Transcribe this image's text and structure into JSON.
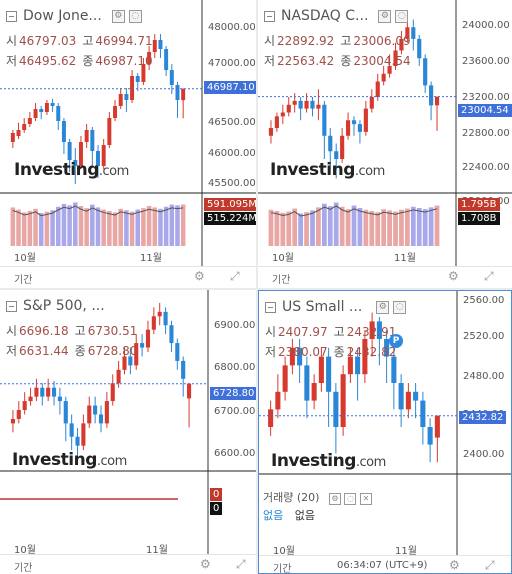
{
  "footer_label": "기간",
  "panels": [
    {
      "id": "dow",
      "title": "Dow Jone...",
      "ohlc": {
        "open_k": "시",
        "open": "46797.03",
        "high_k": "고",
        "high": "46994.71",
        "low_k": "저",
        "low": "46495.62",
        "close_k": "종",
        "close": "46987.10"
      },
      "logo": "Investing",
      "logo_suffix": ".com",
      "y_ticks": [
        "48000.00",
        "47000.00",
        "46500.00",
        "46000.00",
        "45500.00"
      ],
      "price_tag": "46987.10",
      "vol_tags": [
        "591.095M",
        "515.224M"
      ],
      "x_labels": [
        "10월",
        "11월"
      ],
      "colors": {
        "up": "#d63a2f",
        "down": "#2a86d6",
        "tag": "#3f6fd8",
        "vol_up": "#e8a7a4",
        "vol_down": "#a8a8ea"
      },
      "chart_data": {
        "type": "candlestick",
        "ylim": [
          45300,
          48400
        ],
        "x_start": "10월",
        "x_mid": "11월",
        "last": 46987.1,
        "candles": [
          [
            46100,
            46250,
            46000,
            46300
          ],
          [
            46200,
            46300,
            46150,
            46420
          ],
          [
            46300,
            46400,
            46250,
            46500
          ],
          [
            46400,
            46500,
            46350,
            46600
          ],
          [
            46500,
            46650,
            46450,
            46750
          ],
          [
            46650,
            46600,
            46480,
            46700
          ],
          [
            46600,
            46750,
            46550,
            46800
          ],
          [
            46750,
            46700,
            46600,
            46820
          ],
          [
            46700,
            46450,
            46300,
            46750
          ],
          [
            46450,
            46100,
            45900,
            46500
          ],
          [
            46100,
            45800,
            45600,
            46150
          ],
          [
            45800,
            45700,
            45400,
            46000
          ],
          [
            45700,
            46100,
            45650,
            46200
          ],
          [
            46100,
            46300,
            46000,
            46400
          ],
          [
            46300,
            45950,
            45700,
            46350
          ],
          [
            45950,
            45700,
            45500,
            46050
          ],
          [
            45700,
            46050,
            45650,
            46150
          ],
          [
            46050,
            46500,
            46000,
            46600
          ],
          [
            46500,
            46700,
            46450,
            46800
          ],
          [
            46700,
            46900,
            46650,
            47000
          ],
          [
            46900,
            46800,
            46600,
            47000
          ],
          [
            46800,
            47200,
            46750,
            47300
          ],
          [
            47200,
            47100,
            46950,
            47250
          ],
          [
            47100,
            47400,
            47050,
            47500
          ],
          [
            47400,
            47600,
            47300,
            47700
          ],
          [
            47600,
            47800,
            47500,
            47900
          ],
          [
            47800,
            47650,
            47500,
            47900
          ],
          [
            47650,
            47300,
            47200,
            47700
          ],
          [
            47300,
            47050,
            46900,
            47400
          ],
          [
            47050,
            46800,
            46500,
            47100
          ],
          [
            46797,
            46987,
            46495,
            46995
          ]
        ],
        "volume": [
          0.55,
          0.52,
          0.48,
          0.5,
          0.53,
          0.47,
          0.49,
          0.51,
          0.56,
          0.6,
          0.58,
          0.62,
          0.57,
          0.54,
          0.59,
          0.55,
          0.52,
          0.5,
          0.48,
          0.53,
          0.51,
          0.49,
          0.52,
          0.54,
          0.57,
          0.55,
          0.53,
          0.56,
          0.59,
          0.58,
          0.591
        ]
      }
    },
    {
      "id": "nasdaq",
      "title": "NASDAQ C...",
      "ohlc": {
        "open_k": "시",
        "open": "22892.92",
        "high_k": "고",
        "high": "23006.09",
        "low_k": "저",
        "low": "22563.42",
        "close_k": "종",
        "close": "23004.54"
      },
      "logo": "Investing",
      "logo_suffix": ".com",
      "y_ticks": [
        "24000.00",
        "23600.00",
        "23200.00",
        "22800.00",
        "22400.00",
        "22000.00"
      ],
      "price_tag": "23004.54",
      "vol_tags": [
        "1.795B",
        "1.708B"
      ],
      "x_labels": [
        "10월",
        "11월"
      ],
      "colors": {
        "up": "#d63a2f",
        "down": "#2a86d6",
        "tag": "#3f6fd8",
        "vol_up": "#e8a7a4",
        "vol_down": "#a8a8ea"
      },
      "chart_data": {
        "type": "candlestick",
        "ylim": [
          21800,
          24200
        ],
        "last": 23004.54,
        "candles": [
          [
            22500,
            22600,
            22400,
            22700
          ],
          [
            22600,
            22750,
            22550,
            22800
          ],
          [
            22750,
            22800,
            22650,
            22900
          ],
          [
            22800,
            22900,
            22750,
            23000
          ],
          [
            22900,
            22950,
            22800,
            23050
          ],
          [
            22950,
            22850,
            22700,
            23000
          ],
          [
            22850,
            22950,
            22800,
            23050
          ],
          [
            22950,
            22850,
            22750,
            23000
          ],
          [
            22850,
            22900,
            22700,
            23100
          ],
          [
            22900,
            22500,
            22200,
            22950
          ],
          [
            22500,
            22300,
            22100,
            22600
          ],
          [
            22300,
            22200,
            21950,
            22400
          ],
          [
            22200,
            22500,
            22150,
            22600
          ],
          [
            22500,
            22700,
            22450,
            22800
          ],
          [
            22700,
            22650,
            22500,
            22750
          ],
          [
            22650,
            22550,
            22400,
            22700
          ],
          [
            22550,
            22850,
            22500,
            22950
          ],
          [
            22850,
            23000,
            22800,
            23100
          ],
          [
            23000,
            23200,
            22950,
            23300
          ],
          [
            23200,
            23300,
            23150,
            23400
          ],
          [
            23300,
            23400,
            23250,
            23550
          ],
          [
            23400,
            23600,
            23350,
            23700
          ],
          [
            23600,
            23750,
            23550,
            23850
          ],
          [
            23750,
            23900,
            23700,
            24000
          ],
          [
            23900,
            23750,
            23600,
            24000
          ],
          [
            23750,
            23500,
            23400,
            23800
          ],
          [
            23500,
            23150,
            23050,
            23550
          ],
          [
            23150,
            22892,
            22700,
            23200
          ],
          [
            22892,
            23004,
            22563,
            23006
          ]
        ],
        "volume": [
          0.6,
          0.58,
          0.55,
          0.57,
          0.62,
          0.54,
          0.56,
          0.59,
          0.64,
          0.7,
          0.66,
          0.72,
          0.65,
          0.61,
          0.67,
          0.63,
          0.6,
          0.58,
          0.56,
          0.61,
          0.59,
          0.57,
          0.6,
          0.62,
          0.65,
          0.63,
          0.61,
          0.64,
          0.67
        ]
      }
    },
    {
      "id": "sp500",
      "title": "S&P 500, ...",
      "ohlc": {
        "open_k": "시",
        "open": "6696.18",
        "high_k": "고",
        "high": "6730.51",
        "low_k": "저",
        "low": "6631.44",
        "close_k": "종",
        "close": "6728.80"
      },
      "logo": "Investing",
      "logo_suffix": ".com",
      "y_ticks": [
        "6900.00",
        "6800.00",
        "6700.00",
        "6600.00"
      ],
      "price_tag": "6728.80",
      "vol_tags": [
        "0",
        "0"
      ],
      "x_labels": [
        "10월",
        "11월"
      ],
      "colors": {
        "up": "#d63a2f",
        "down": "#2a86d6",
        "tag": "#3f6fd8",
        "vol_up": "#e8a7a4",
        "vol_down": "#a8a8ea"
      },
      "chart_data": {
        "type": "candlestick",
        "ylim": [
          6540,
          6930
        ],
        "last": 6728.8,
        "candles": [
          [
            6640,
            6650,
            6620,
            6670
          ],
          [
            6650,
            6670,
            6640,
            6690
          ],
          [
            6670,
            6690,
            6660,
            6710
          ],
          [
            6690,
            6700,
            6680,
            6720
          ],
          [
            6700,
            6720,
            6690,
            6740
          ],
          [
            6720,
            6700,
            6680,
            6730
          ],
          [
            6700,
            6720,
            6690,
            6740
          ],
          [
            6720,
            6700,
            6680,
            6735
          ],
          [
            6700,
            6690,
            6660,
            6720
          ],
          [
            6690,
            6640,
            6600,
            6700
          ],
          [
            6640,
            6610,
            6580,
            6660
          ],
          [
            6610,
            6590,
            6560,
            6630
          ],
          [
            6590,
            6640,
            6580,
            6660
          ],
          [
            6640,
            6680,
            6630,
            6700
          ],
          [
            6680,
            6660,
            6640,
            6700
          ],
          [
            6660,
            6640,
            6620,
            6680
          ],
          [
            6640,
            6690,
            6630,
            6710
          ],
          [
            6690,
            6730,
            6680,
            6750
          ],
          [
            6730,
            6760,
            6720,
            6780
          ],
          [
            6760,
            6790,
            6750,
            6810
          ],
          [
            6790,
            6770,
            6750,
            6810
          ],
          [
            6770,
            6820,
            6760,
            6840
          ],
          [
            6820,
            6810,
            6790,
            6840
          ],
          [
            6810,
            6850,
            6800,
            6870
          ],
          [
            6850,
            6880,
            6840,
            6900
          ],
          [
            6880,
            6890,
            6860,
            6910
          ],
          [
            6890,
            6860,
            6840,
            6900
          ],
          [
            6860,
            6820,
            6800,
            6870
          ],
          [
            6820,
            6780,
            6760,
            6830
          ],
          [
            6780,
            6740,
            6700,
            6790
          ],
          [
            6696,
            6729,
            6631,
            6731
          ]
        ],
        "volume": []
      }
    },
    {
      "id": "russell",
      "title": "US Small ...",
      "ohlc": {
        "open_k": "시",
        "open": "2407.97",
        "high_k": "고",
        "high": "2432.91",
        "low_k": "저",
        "low": "2380.07",
        "close_k": "종",
        "close": "2432.82"
      },
      "logo": "Investing",
      "logo_suffix": ".com",
      "y_ticks": [
        "2560.00",
        "2520.00",
        "2480.00",
        "2440.00",
        "2400.00"
      ],
      "price_tag": "2432.82",
      "badge": "P",
      "x_labels": [
        "10월",
        "11월"
      ],
      "volume_title": "거래량 (20)",
      "volume_values": [
        "없음",
        "없음"
      ],
      "time": "06:34:07 (UTC+9)",
      "colors": {
        "up": "#d63a2f",
        "down": "#2a86d6",
        "tag": "#3f6fd8",
        "vol_up": "#e8a7a4",
        "vol_down": "#a8a8ea"
      },
      "chart_data": {
        "type": "candlestick",
        "ylim": [
          2370,
          2570
        ],
        "last": 2432.82,
        "candles": [
          [
            2420,
            2440,
            2410,
            2450
          ],
          [
            2440,
            2460,
            2430,
            2480
          ],
          [
            2460,
            2490,
            2450,
            2500
          ],
          [
            2490,
            2510,
            2480,
            2520
          ],
          [
            2510,
            2490,
            2470,
            2520
          ],
          [
            2490,
            2450,
            2430,
            2500
          ],
          [
            2450,
            2470,
            2440,
            2480
          ],
          [
            2470,
            2500,
            2460,
            2510
          ],
          [
            2500,
            2460,
            2420,
            2510
          ],
          [
            2460,
            2420,
            2390,
            2470
          ],
          [
            2420,
            2480,
            2410,
            2490
          ],
          [
            2480,
            2500,
            2470,
            2510
          ],
          [
            2500,
            2480,
            2450,
            2510
          ],
          [
            2480,
            2520,
            2470,
            2530
          ],
          [
            2520,
            2540,
            2500,
            2550
          ],
          [
            2540,
            2520,
            2490,
            2545
          ],
          [
            2520,
            2500,
            2470,
            2530
          ],
          [
            2500,
            2470,
            2440,
            2510
          ],
          [
            2470,
            2440,
            2420,
            2480
          ],
          [
            2440,
            2460,
            2430,
            2470
          ],
          [
            2460,
            2450,
            2430,
            2470
          ],
          [
            2450,
            2420,
            2400,
            2460
          ],
          [
            2420,
            2400,
            2380,
            2430
          ],
          [
            2408,
            2433,
            2380,
            2433
          ]
        ],
        "volume": []
      }
    }
  ]
}
